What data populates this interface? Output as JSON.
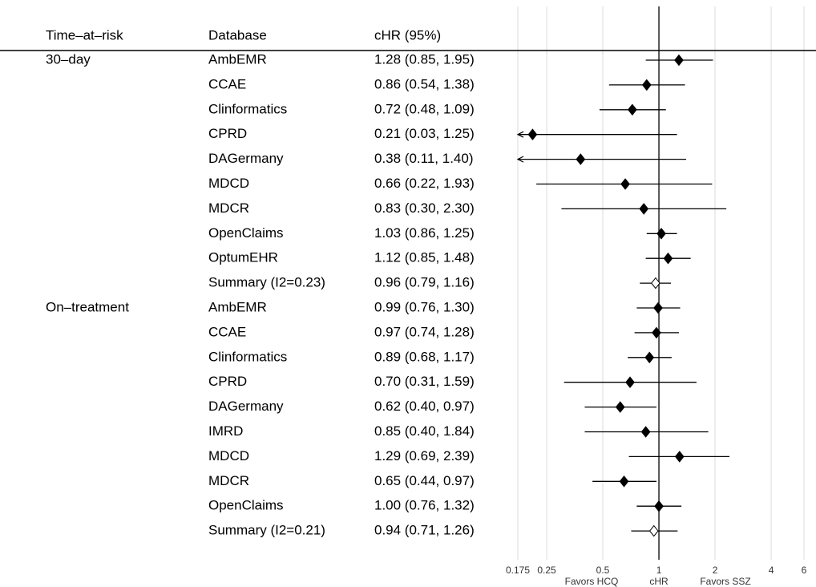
{
  "chart_data": {
    "type": "forest",
    "columns": [
      "Time–at–risk",
      "Database",
      "cHR (95%)"
    ],
    "groups": [
      "30–day",
      null,
      null,
      null,
      null,
      null,
      null,
      null,
      null,
      null,
      "On–treatment",
      null,
      null,
      null,
      null,
      null,
      null,
      null,
      null,
      null
    ],
    "categories": [
      "AmbEMR",
      "CCAE",
      "Clinformatics",
      "CPRD",
      "DAGermany",
      "MDCD",
      "MDCR",
      "OpenClaims",
      "OptumEHR",
      "Summary (I2=0.23)",
      "AmbEMR",
      "CCAE",
      "Clinformatics",
      "CPRD",
      "DAGermany",
      "IMRD",
      "MDCD",
      "MDCR",
      "OpenClaims",
      "Summary (I2=0.21)"
    ],
    "values": [
      1.28,
      0.86,
      0.72,
      0.21,
      0.38,
      0.66,
      0.83,
      1.03,
      1.12,
      0.96,
      0.99,
      0.97,
      0.89,
      0.7,
      0.62,
      0.85,
      1.29,
      0.65,
      1.0,
      0.94
    ],
    "lower": [
      0.85,
      0.54,
      0.48,
      0.03,
      0.11,
      0.22,
      0.3,
      0.86,
      0.85,
      0.79,
      0.76,
      0.74,
      0.68,
      0.31,
      0.4,
      0.4,
      0.69,
      0.44,
      0.76,
      0.71
    ],
    "upper": [
      1.95,
      1.38,
      1.09,
      1.25,
      1.4,
      1.93,
      2.3,
      1.25,
      1.48,
      1.16,
      1.3,
      1.28,
      1.17,
      1.59,
      0.97,
      1.84,
      2.39,
      0.97,
      1.32,
      1.26
    ],
    "value_labels": [
      "1.28 (0.85, 1.95)",
      "0.86 (0.54, 1.38)",
      "0.72 (0.48, 1.09)",
      "0.21 (0.03, 1.25)",
      "0.38 (0.11, 1.40)",
      "0.66 (0.22, 1.93)",
      "0.83 (0.30, 2.30)",
      "1.03 (0.86, 1.25)",
      "1.12 (0.85, 1.48)",
      "0.96 (0.79, 1.16)",
      "0.99 (0.76, 1.30)",
      "0.97 (0.74, 1.28)",
      "0.89 (0.68, 1.17)",
      "0.70 (0.31, 1.59)",
      "0.62 (0.40, 0.97)",
      "0.85 (0.40, 1.84)",
      "1.29 (0.69, 2.39)",
      "0.65 (0.44, 0.97)",
      "1.00 (0.76, 1.32)",
      "0.94 (0.71, 1.26)"
    ],
    "markers": [
      "filled",
      "filled",
      "filled",
      "filled",
      "filled",
      "filled",
      "filled",
      "filled",
      "filled",
      "open",
      "filled",
      "filled",
      "filled",
      "filled",
      "filled",
      "filled",
      "filled",
      "filled",
      "filled",
      "open"
    ],
    "color": "#000000",
    "xlabel": "cHR",
    "annotations": [
      "Favors HCQ",
      "Favors SSZ"
    ],
    "log_x": true,
    "xlim": [
      0.175,
      6
    ],
    "xticks": [
      0.175,
      0.25,
      0.5,
      1,
      2,
      4,
      6
    ],
    "reference": 1,
    "grid": true
  }
}
